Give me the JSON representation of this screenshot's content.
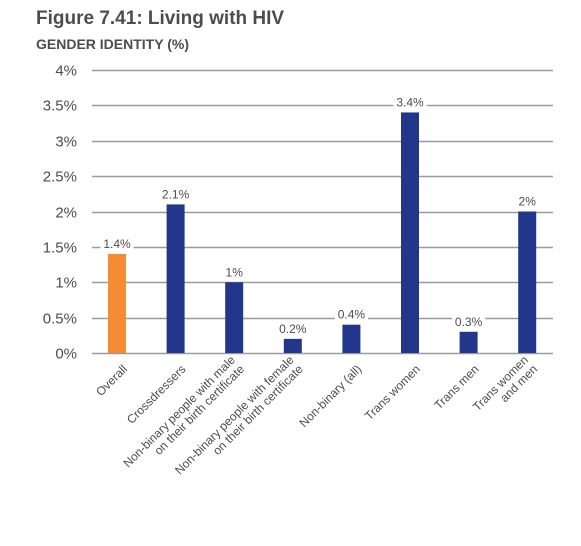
{
  "header": {
    "title": "Figure 7.41: Living with HIV",
    "subtitle": "GENDER IDENTITY (%)"
  },
  "chart_data": {
    "type": "bar",
    "title": "Figure 7.41: Living with HIV",
    "subtitle": "GENDER IDENTITY (%)",
    "xlabel": "",
    "ylabel": "",
    "ylim": [
      0,
      4
    ],
    "yticks": [
      0,
      0.5,
      1,
      1.5,
      2,
      2.5,
      3,
      3.5,
      4
    ],
    "ytick_labels": [
      "0%",
      "0.5%",
      "1%",
      "1.5%",
      "2%",
      "2.5%",
      "3%",
      "3.5%",
      "4%"
    ],
    "grid": true,
    "categories": [
      [
        "Overall"
      ],
      [
        "Crossdressers"
      ],
      [
        "Non-binary people with male",
        "on their birth certificate"
      ],
      [
        "Non-binary people with female",
        "on their birth certificate"
      ],
      [
        "Non-binary (all)"
      ],
      [
        "Trans women"
      ],
      [
        "Trans men"
      ],
      [
        "Trans women",
        "and men"
      ]
    ],
    "values": [
      1.4,
      2.1,
      1,
      0.2,
      0.4,
      3.4,
      0.3,
      2
    ],
    "value_labels": [
      "1.4%",
      "2.1%",
      "1%",
      "0.2%",
      "0.4%",
      "3.4%",
      "0.3%",
      "2%"
    ],
    "colors": [
      "#f58b32",
      "#22368c",
      "#22368c",
      "#22368c",
      "#22368c",
      "#22368c",
      "#22368c",
      "#22368c"
    ],
    "grid_color": "#9b9b9b",
    "text_color": "#4d4d4f"
  }
}
